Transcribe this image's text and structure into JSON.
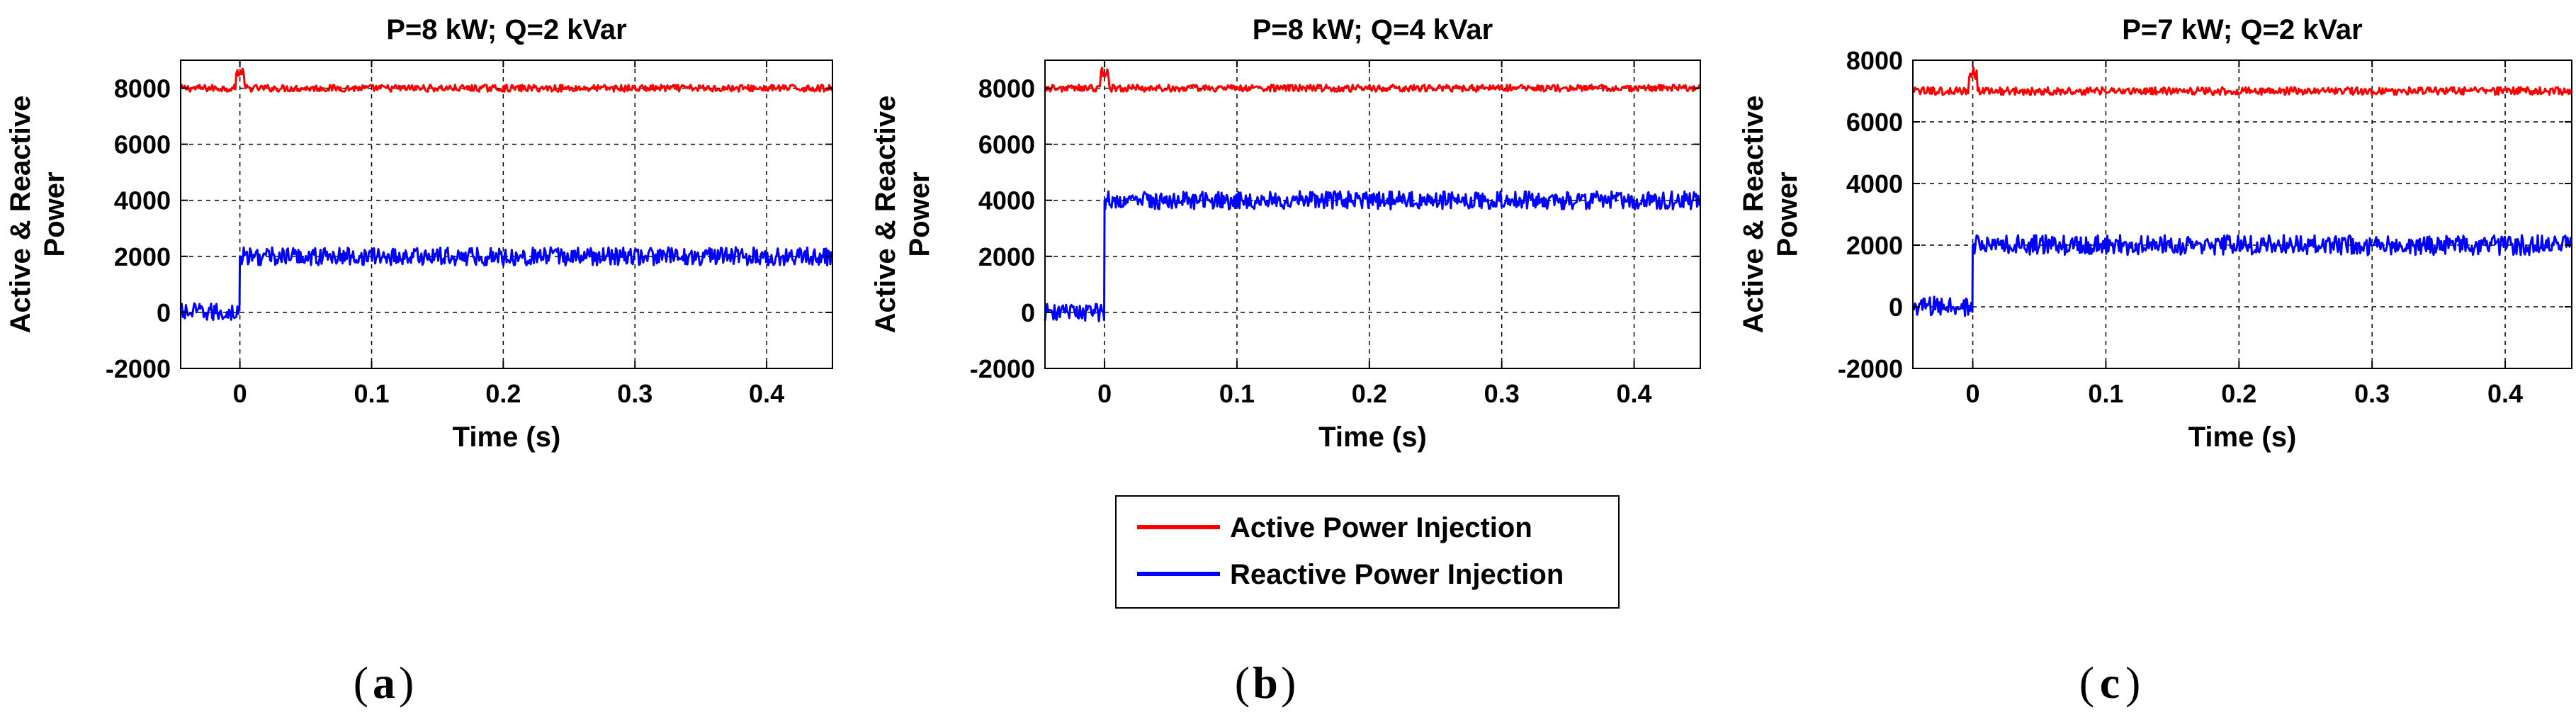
{
  "chart_data": [
    {
      "type": "line",
      "panel": "(a)",
      "panel_letter": "a",
      "title": "P=8 kW; Q=2 kVar",
      "xlabel": "Time (s)",
      "ylabel": [
        "Active & Reactive",
        "Power"
      ],
      "xlim": [
        -0.045,
        0.45
      ],
      "ylim": [
        -2000,
        9000
      ],
      "xticks": [
        0,
        0.1,
        0.2,
        0.3,
        0.4
      ],
      "xtick_labels": [
        "0",
        "0.1",
        "0.2",
        "0.3",
        "0.4"
      ],
      "yticks": [
        -2000,
        0,
        2000,
        4000,
        6000,
        8000
      ],
      "ytick_labels": [
        "-2000",
        "0",
        "2000",
        "4000",
        "6000",
        "8000"
      ],
      "grid": true,
      "series": [
        {
          "name": "Active Power Injection",
          "color": "#ff0000",
          "steady_value": 8000,
          "pre_step_value": 8000,
          "ripple": 250
        },
        {
          "name": "Reactive Power Injection",
          "color": "#0000ff",
          "steady_value": 2000,
          "pre_step_value": 0,
          "ripple": 650
        }
      ],
      "step_time": 0
    },
    {
      "type": "line",
      "panel": "(b)",
      "panel_letter": "b",
      "title": "P=8 kW; Q=4 kVar",
      "xlabel": "Time (s)",
      "ylabel": [
        "Active & Reactive",
        "Power"
      ],
      "xlim": [
        -0.045,
        0.45
      ],
      "ylim": [
        -2000,
        9000
      ],
      "xticks": [
        0,
        0.1,
        0.2,
        0.3,
        0.4
      ],
      "xtick_labels": [
        "0",
        "0.1",
        "0.2",
        "0.3",
        "0.4"
      ],
      "yticks": [
        -2000,
        0,
        2000,
        4000,
        6000,
        8000
      ],
      "ytick_labels": [
        "-2000",
        "0",
        "2000",
        "4000",
        "6000",
        "8000"
      ],
      "grid": true,
      "series": [
        {
          "name": "Active Power Injection",
          "color": "#ff0000",
          "steady_value": 8000,
          "pre_step_value": 8000,
          "ripple": 250
        },
        {
          "name": "Reactive Power Injection",
          "color": "#0000ff",
          "steady_value": 4000,
          "pre_step_value": 0,
          "ripple": 650
        }
      ],
      "step_time": 0
    },
    {
      "type": "line",
      "panel": "(c)",
      "panel_letter": "c",
      "title": "P=7 kW; Q=2 kVar",
      "xlabel": "Time (s)",
      "ylabel": [
        "Active & Reactive",
        "Power"
      ],
      "xlim": [
        -0.045,
        0.45
      ],
      "ylim": [
        -2000,
        8000
      ],
      "xticks": [
        0,
        0.1,
        0.2,
        0.3,
        0.4
      ],
      "xtick_labels": [
        "0",
        "0.1",
        "0.2",
        "0.3",
        "0.4"
      ],
      "yticks": [
        -2000,
        0,
        2000,
        4000,
        6000,
        8000
      ],
      "ytick_labels": [
        "-2000",
        "0",
        "2000",
        "4000",
        "6000",
        "8000"
      ],
      "grid": true,
      "series": [
        {
          "name": "Active Power Injection",
          "color": "#ff0000",
          "steady_value": 7000,
          "pre_step_value": 7000,
          "ripple": 250
        },
        {
          "name": "Reactive Power Injection",
          "color": "#0000ff",
          "steady_value": 2000,
          "pre_step_value": 0,
          "ripple": 650
        }
      ],
      "step_time": 0
    }
  ],
  "legend": {
    "items": [
      {
        "label": "Active Power Injection",
        "color": "#ff0000"
      },
      {
        "label": "Reactive Power Injection",
        "color": "#0000ff"
      }
    ]
  }
}
